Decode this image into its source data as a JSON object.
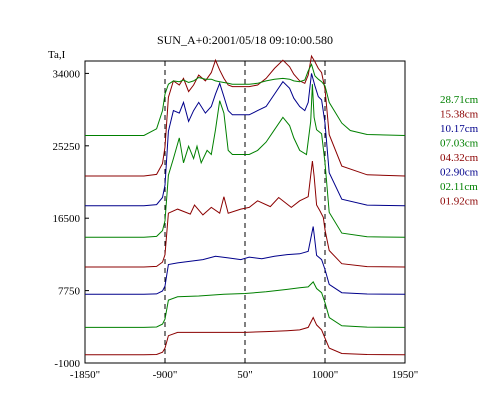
{
  "chart_data": {
    "type": "line",
    "title": "SUN_A+0:2001/05/18 09:10:00.580",
    "ylabel": "Ta,I",
    "xlim": [
      -1850,
      1950
    ],
    "ylim": [
      -1000,
      35500
    ],
    "x_ticks": [
      {
        "value": -1850,
        "label": "-1850\""
      },
      {
        "value": -900,
        "label": "-900\""
      },
      {
        "value": 50,
        "label": "50\""
      },
      {
        "value": 1000,
        "label": "1000\""
      },
      {
        "value": 1950,
        "label": "1950\""
      }
    ],
    "y_ticks": [
      {
        "value": 34000,
        "label": "34000"
      },
      {
        "value": 25250,
        "label": "25250"
      },
      {
        "value": 16500,
        "label": "16500"
      },
      {
        "value": 7750,
        "label": "7750"
      },
      {
        "value": -1000,
        "label": "-1000"
      }
    ],
    "vlines": [
      -900,
      50,
      1000
    ],
    "grid": false,
    "legend_position": "right",
    "series": [
      {
        "name": "01.92cm",
        "color": "#8B0000",
        "offset": 0,
        "x": [
          -1850,
          -1150,
          -1000,
          -930,
          -900,
          -860,
          -750,
          -500,
          -200,
          50,
          300,
          550,
          700,
          800,
          860,
          900,
          960,
          1000,
          1050,
          1200,
          1500,
          1950
        ],
        "y": [
          0,
          0,
          30,
          300,
          800,
          2300,
          2700,
          2700,
          2700,
          2700,
          2800,
          2900,
          3000,
          3300,
          4500,
          3600,
          3000,
          2000,
          800,
          150,
          30,
          0
        ]
      },
      {
        "name": "02.11cm",
        "color": "#008000",
        "offset": 3300,
        "x": [
          -1850,
          -1150,
          -1000,
          -930,
          -900,
          -860,
          -750,
          -500,
          -200,
          50,
          300,
          550,
          700,
          800,
          860,
          900,
          960,
          1000,
          1050,
          1200,
          1500,
          1950
        ],
        "y": [
          0,
          0,
          50,
          400,
          1000,
          3300,
          3700,
          3800,
          4000,
          4100,
          4300,
          4600,
          4800,
          4900,
          5500,
          4700,
          4200,
          3000,
          1200,
          200,
          40,
          0
        ]
      },
      {
        "name": "02.90cm",
        "color": "#00008B",
        "offset": 7300,
        "x": [
          -1850,
          -1150,
          -1000,
          -930,
          -900,
          -860,
          -750,
          -600,
          -450,
          -300,
          -150,
          0,
          100,
          250,
          400,
          550,
          700,
          800,
          860,
          900,
          960,
          1000,
          1050,
          1200,
          1500,
          1950
        ],
        "y": [
          0,
          0,
          50,
          400,
          1000,
          3600,
          3800,
          4000,
          4200,
          4600,
          4400,
          4200,
          4500,
          4300,
          4600,
          4800,
          4900,
          5200,
          8200,
          4700,
          4200,
          3000,
          1200,
          200,
          40,
          0
        ]
      },
      {
        "name": "04.32cm",
        "color": "#8B0000",
        "offset": 10600,
        "x": [
          -1850,
          -1150,
          -1000,
          -930,
          -900,
          -860,
          -750,
          -600,
          -550,
          -450,
          -350,
          -250,
          -200,
          -150,
          0,
          100,
          200,
          350,
          450,
          600,
          700,
          800,
          850,
          870,
          900,
          940,
          980,
          1000,
          1050,
          1200,
          1500,
          1950
        ],
        "y": [
          0,
          0,
          80,
          600,
          1500,
          6500,
          7000,
          6400,
          7500,
          6300,
          7200,
          6500,
          8500,
          6500,
          7000,
          7200,
          8000,
          7300,
          8400,
          7200,
          8000,
          8500,
          12800,
          11000,
          7500,
          6800,
          6000,
          4500,
          2000,
          400,
          50,
          0
        ]
      },
      {
        "name": "07.03cm",
        "color": "#008000",
        "offset": 14200,
        "x": [
          -1850,
          -1150,
          -1000,
          -930,
          -900,
          -860,
          -800,
          -730,
          -680,
          -620,
          -560,
          -520,
          -470,
          -400,
          -350,
          -300,
          -250,
          -200,
          -150,
          -100,
          0,
          100,
          200,
          300,
          400,
          500,
          580,
          630,
          700,
          780,
          830,
          850,
          870,
          900,
          960,
          1000,
          1050,
          1200,
          1500,
          1950
        ],
        "y": [
          0,
          0,
          100,
          800,
          2000,
          7500,
          9500,
          12000,
          9000,
          11000,
          9500,
          11000,
          9000,
          10500,
          10000,
          13000,
          16500,
          15000,
          10500,
          10000,
          10000,
          10000,
          10500,
          11500,
          13000,
          14500,
          13500,
          12000,
          10500,
          10000,
          14000,
          18500,
          14500,
          13000,
          12500,
          9000,
          3000,
          500,
          50,
          0
        ]
      },
      {
        "name": "10.17cm",
        "color": "#00008B",
        "offset": 18000,
        "x": [
          -1850,
          -1150,
          -1000,
          -930,
          -900,
          -860,
          -800,
          -730,
          -680,
          -620,
          -560,
          -500,
          -420,
          -350,
          -300,
          -250,
          -200,
          -150,
          -100,
          0,
          100,
          200,
          300,
          400,
          500,
          580,
          630,
          700,
          760,
          800,
          840,
          880,
          920,
          960,
          1000,
          1050,
          1200,
          1500,
          1950
        ],
        "y": [
          0,
          0,
          150,
          1000,
          2500,
          9000,
          11500,
          11200,
          12500,
          10200,
          11500,
          12500,
          11200,
          12000,
          13500,
          14800,
          13200,
          11500,
          11000,
          11000,
          11000,
          11500,
          12000,
          13500,
          15000,
          14200,
          13000,
          12000,
          11500,
          12500,
          16000,
          14500,
          13200,
          12800,
          10000,
          4000,
          800,
          80,
          0
        ]
      },
      {
        "name": "15.38cm",
        "color": "#8B0000",
        "offset": 21600,
        "x": [
          -1850,
          -1150,
          -1000,
          -930,
          -900,
          -860,
          -800,
          -730,
          -680,
          -620,
          -560,
          -500,
          -420,
          -350,
          -300,
          -250,
          -200,
          -150,
          -100,
          0,
          100,
          200,
          300,
          400,
          500,
          580,
          630,
          700,
          760,
          800,
          840,
          880,
          920,
          960,
          1000,
          1050,
          1200,
          1500,
          1950
        ],
        "y": [
          0,
          0,
          200,
          1500,
          3500,
          9500,
          11500,
          11000,
          11800,
          10200,
          11000,
          12200,
          11500,
          12500,
          14000,
          12800,
          11800,
          11000,
          10800,
          10800,
          10800,
          11000,
          11800,
          13000,
          14000,
          13200,
          12300,
          11500,
          11200,
          12200,
          14500,
          13800,
          13000,
          12500,
          10500,
          5000,
          1200,
          150,
          0
        ]
      },
      {
        "name": "28.71cm",
        "color": "#008000",
        "offset": 26500,
        "x": [
          -1850,
          -1150,
          -1000,
          -930,
          -900,
          -860,
          -800,
          -730,
          -680,
          -620,
          -560,
          -500,
          -420,
          -350,
          -300,
          -250,
          -200,
          -150,
          -100,
          0,
          100,
          200,
          300,
          400,
          500,
          580,
          630,
          700,
          760,
          800,
          840,
          880,
          920,
          960,
          1000,
          1050,
          1200,
          1300,
          1500,
          1950
        ],
        "y": [
          0,
          0,
          800,
          3000,
          5000,
          6200,
          6600,
          6500,
          6700,
          6400,
          6600,
          7000,
          6800,
          6800,
          6600,
          6500,
          6400,
          6300,
          6200,
          6200,
          6200,
          6300,
          6600,
          6800,
          6900,
          6800,
          6600,
          6500,
          6700,
          7800,
          8600,
          7200,
          6800,
          6500,
          6000,
          4000,
          1500,
          600,
          120,
          0
        ]
      }
    ]
  }
}
